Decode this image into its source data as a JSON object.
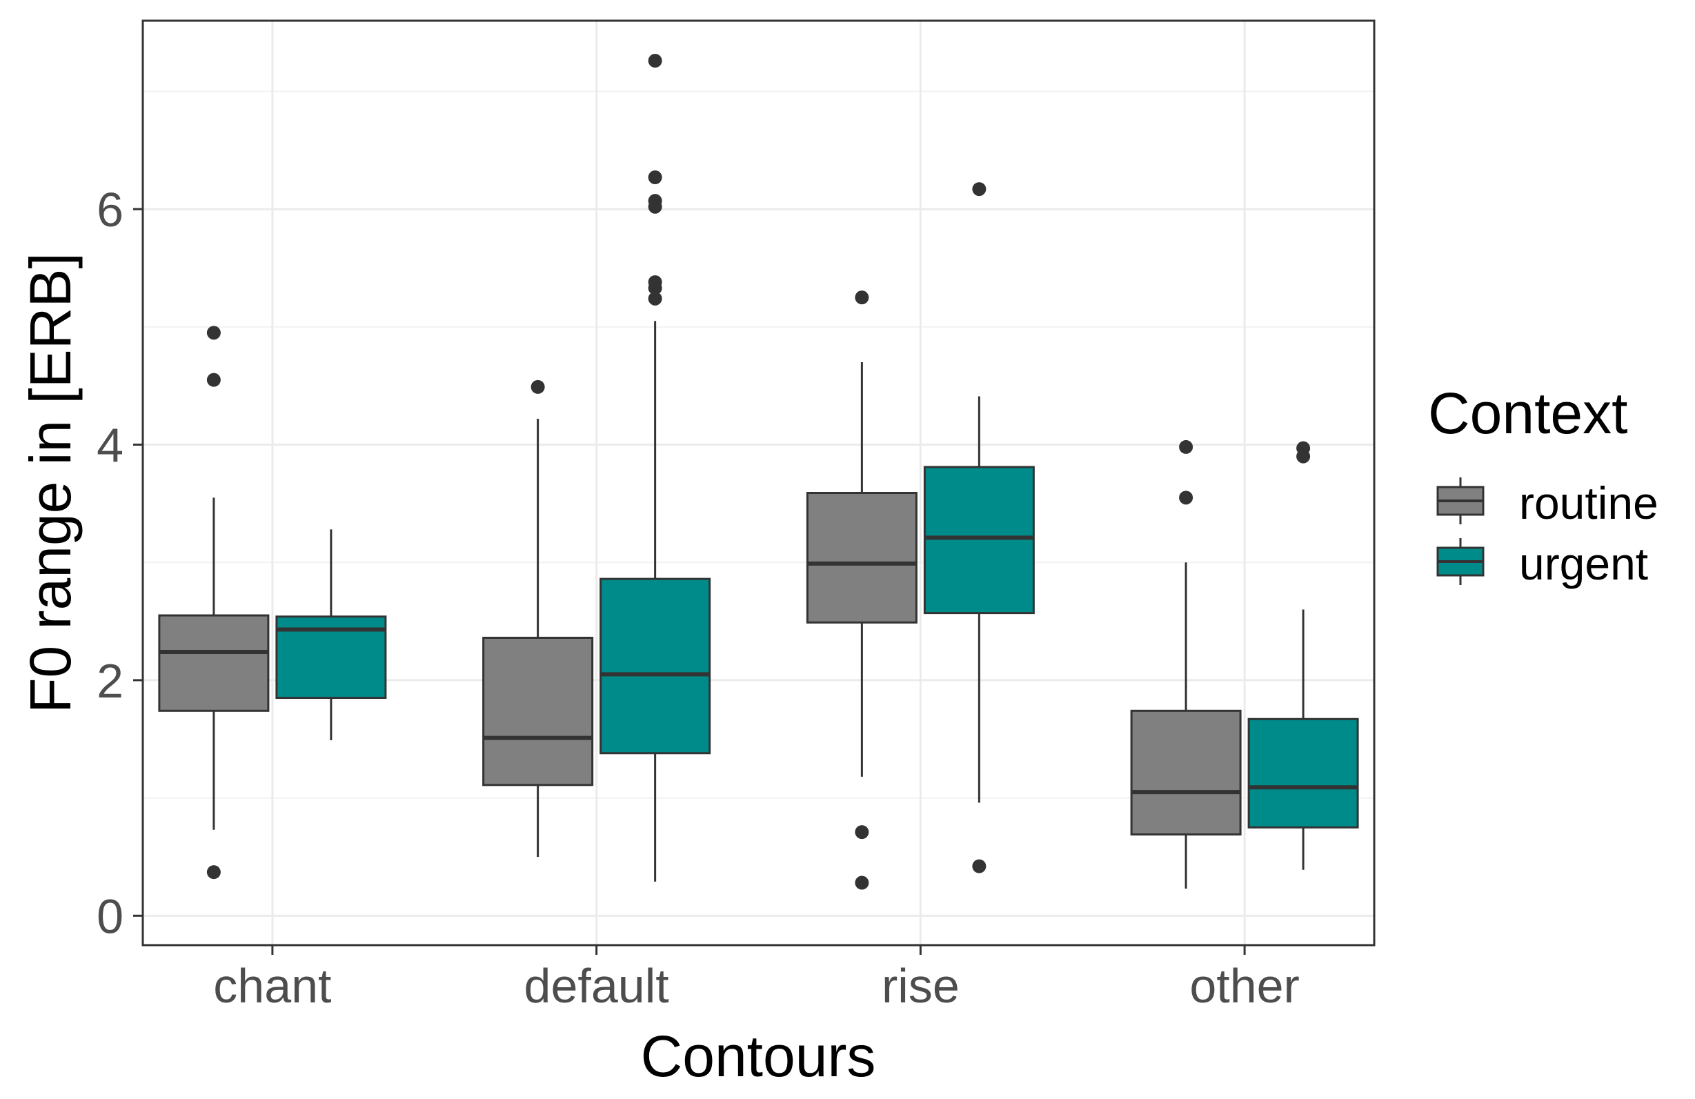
{
  "chart_data": {
    "type": "boxplot",
    "title": "",
    "xlabel": "Contours",
    "ylabel": "F0 range in [ERB]",
    "ylim": [
      -0.25,
      7.6
    ],
    "yticks": [
      0,
      2,
      4,
      6
    ],
    "ytick_labels": [
      "0",
      "2",
      "4",
      "6"
    ],
    "grid": true,
    "categories": [
      "chant",
      "default",
      "rise",
      "other"
    ],
    "legend": {
      "title": "Context",
      "placement": "right",
      "entries": [
        {
          "name": "routine",
          "color": "#808080"
        },
        {
          "name": "urgent",
          "color": "#008B8B"
        }
      ]
    },
    "series": [
      {
        "name": "routine",
        "color": "#808080",
        "boxes": [
          {
            "category": "chant",
            "lower_whisker": 0.73,
            "q1": 1.74,
            "median": 2.24,
            "q3": 2.55,
            "upper_whisker": 3.55,
            "outliers": [
              4.95,
              4.55,
              0.37
            ]
          },
          {
            "category": "default",
            "lower_whisker": 0.5,
            "q1": 1.11,
            "median": 1.51,
            "q3": 2.36,
            "upper_whisker": 4.22,
            "outliers": [
              4.49
            ]
          },
          {
            "category": "rise",
            "lower_whisker": 1.18,
            "q1": 2.49,
            "median": 2.99,
            "q3": 3.59,
            "upper_whisker": 4.7,
            "outliers": [
              5.25,
              0.71,
              0.28
            ]
          },
          {
            "category": "other",
            "lower_whisker": 0.23,
            "q1": 0.69,
            "median": 1.05,
            "q3": 1.74,
            "upper_whisker": 3.0,
            "outliers": [
              3.98,
              3.55
            ]
          }
        ]
      },
      {
        "name": "urgent",
        "color": "#008B8B",
        "boxes": [
          {
            "category": "chant",
            "lower_whisker": 1.49,
            "q1": 1.85,
            "median": 2.43,
            "q3": 2.54,
            "upper_whisker": 3.28,
            "outliers": []
          },
          {
            "category": "default",
            "lower_whisker": 0.29,
            "q1": 1.38,
            "median": 2.05,
            "q3": 2.86,
            "upper_whisker": 5.05,
            "outliers": [
              7.26,
              6.27,
              6.07,
              6.02,
              5.38,
              5.33,
              5.24
            ]
          },
          {
            "category": "rise",
            "lower_whisker": 0.96,
            "q1": 2.57,
            "median": 3.21,
            "q3": 3.81,
            "upper_whisker": 4.41,
            "outliers": [
              6.17,
              0.42
            ]
          },
          {
            "category": "other",
            "lower_whisker": 0.39,
            "q1": 0.75,
            "median": 1.09,
            "q3": 1.67,
            "upper_whisker": 2.6,
            "outliers": [
              3.97,
              3.9
            ]
          }
        ]
      }
    ]
  }
}
